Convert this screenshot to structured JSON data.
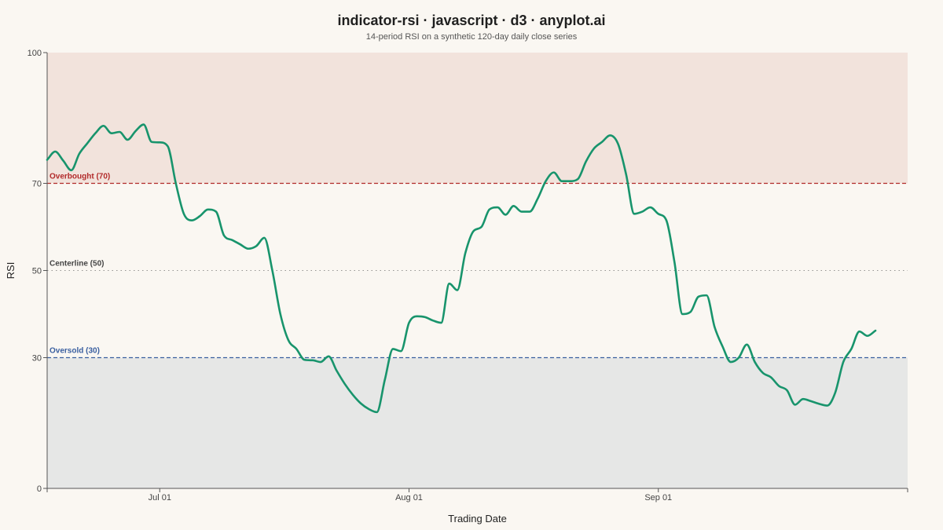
{
  "header": {
    "title": "indicator-rsi · javascript · d3 · anyplot.ai",
    "subtitle": "14-period RSI on a synthetic 120-day daily close series"
  },
  "chart_data": {
    "type": "line",
    "title": "indicator-rsi · javascript · d3 · anyplot.ai",
    "subtitle": "14-period RSI on a synthetic 120-day daily close series",
    "xlabel": "Trading Date",
    "ylabel": "RSI",
    "ylim": [
      0,
      100
    ],
    "y_ticks": [
      0,
      30,
      50,
      70,
      100
    ],
    "x_ticks": [
      "Jul 01",
      "Aug 01",
      "Sep 01"
    ],
    "x_start": "2024-06-17",
    "x_end": "2024-10-02",
    "grid": false,
    "colors": {
      "line": "#18946c",
      "overbought": "#b22a2a",
      "oversold": "#3a5fa0",
      "centerline": "#444444",
      "overbought_zone": "#f2e3dc",
      "oversold_zone": "#e6e7e6"
    },
    "reference_lines": [
      {
        "value": 70,
        "label": "Overbought (70)",
        "style": "dashed",
        "color": "#b22a2a"
      },
      {
        "value": 50,
        "label": "Centerline (50)",
        "style": "dotted",
        "color": "#444444"
      },
      {
        "value": 30,
        "label": "Oversold (30)",
        "style": "dashed",
        "color": "#3a5fa0"
      }
    ],
    "zones": [
      {
        "from": 70,
        "to": 100,
        "color": "#f2e3dc"
      },
      {
        "from": 0,
        "to": 30,
        "color": "#e6e7e6"
      }
    ],
    "series": [
      {
        "values": [
          [
            0,
            75.4
          ],
          [
            1,
            77.3
          ],
          [
            2,
            75.2
          ],
          [
            3,
            73.0
          ],
          [
            4,
            76.8
          ],
          [
            5,
            79.2
          ],
          [
            6,
            81.5
          ],
          [
            7,
            83.2
          ],
          [
            8,
            81.5
          ],
          [
            9,
            81.8
          ],
          [
            10,
            80.0
          ],
          [
            11,
            82.0
          ],
          [
            12,
            83.5
          ],
          [
            13,
            79.5
          ],
          [
            14,
            79.4
          ],
          [
            15,
            78.5
          ],
          [
            16,
            70.0
          ],
          [
            17,
            63.0
          ],
          [
            18,
            61.5
          ],
          [
            19,
            62.5
          ],
          [
            20,
            64.0
          ],
          [
            21,
            63.5
          ],
          [
            22,
            58.0
          ],
          [
            23,
            57.0
          ],
          [
            24,
            56.0
          ],
          [
            25,
            55.0
          ],
          [
            26,
            55.6
          ],
          [
            27,
            57.5
          ],
          [
            28,
            50.0
          ],
          [
            29,
            40.0
          ],
          [
            30,
            34.0
          ],
          [
            31,
            32.0
          ],
          [
            32,
            29.5
          ],
          [
            33,
            29.4
          ],
          [
            34,
            29.0
          ],
          [
            35,
            30.3
          ],
          [
            36,
            27.0
          ],
          [
            37,
            24.0
          ],
          [
            38,
            21.5
          ],
          [
            39,
            19.5
          ],
          [
            40,
            18.2
          ],
          [
            41,
            17.5
          ],
          [
            42,
            25.0
          ],
          [
            43,
            32.0
          ],
          [
            44,
            31.5
          ],
          [
            45,
            38.0
          ],
          [
            46,
            39.5
          ],
          [
            47,
            39.3
          ],
          [
            48,
            38.5
          ],
          [
            49,
            38.0
          ],
          [
            50,
            47.0
          ],
          [
            51,
            45.5
          ],
          [
            52,
            54.0
          ],
          [
            53,
            59.0
          ],
          [
            54,
            60.0
          ],
          [
            55,
            64.0
          ],
          [
            56,
            64.5
          ],
          [
            57,
            62.8
          ],
          [
            58,
            64.8
          ],
          [
            59,
            63.5
          ],
          [
            60,
            63.5
          ],
          [
            61,
            66.5
          ],
          [
            62,
            70.5
          ],
          [
            63,
            72.5
          ],
          [
            64,
            70.5
          ],
          [
            65,
            70.5
          ],
          [
            66,
            71.0
          ],
          [
            67,
            75.0
          ],
          [
            68,
            78.0
          ],
          [
            69,
            79.5
          ],
          [
            70,
            81.0
          ],
          [
            71,
            79.0
          ],
          [
            72,
            72.0
          ],
          [
            73,
            63.0
          ],
          [
            74,
            63.5
          ],
          [
            75,
            64.5
          ],
          [
            76,
            63.0
          ],
          [
            77,
            61.5
          ],
          [
            78,
            52.0
          ],
          [
            79,
            40.0
          ],
          [
            80,
            40.5
          ],
          [
            81,
            44.0
          ],
          [
            82,
            44.3
          ],
          [
            83,
            37.0
          ],
          [
            84,
            32.5
          ],
          [
            85,
            29.0
          ],
          [
            86,
            30.0
          ],
          [
            87,
            33.0
          ],
          [
            88,
            29.0
          ],
          [
            89,
            26.5
          ],
          [
            90,
            25.5
          ],
          [
            91,
            23.5
          ],
          [
            92,
            22.5
          ],
          [
            93,
            19.2
          ],
          [
            94,
            20.5
          ],
          [
            95,
            20.0
          ],
          [
            96,
            19.4
          ],
          [
            97,
            19.0
          ],
          [
            98,
            22.0
          ],
          [
            99,
            29.0
          ],
          [
            100,
            32.0
          ],
          [
            101,
            36.0
          ],
          [
            102,
            35.0
          ],
          [
            103,
            36.2
          ]
        ]
      }
    ]
  }
}
